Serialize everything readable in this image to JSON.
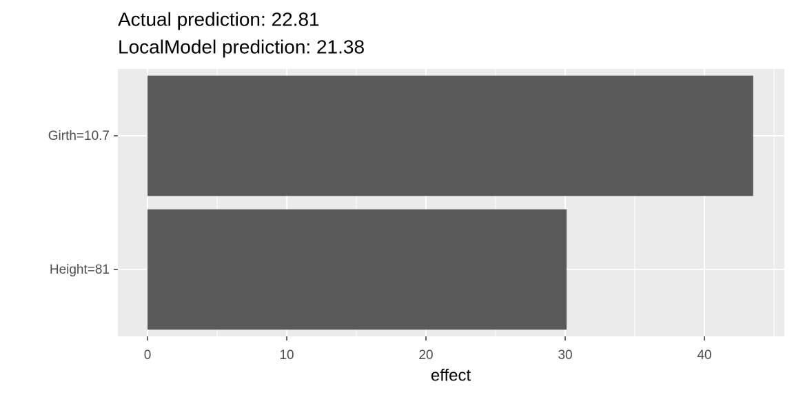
{
  "chart_data": {
    "type": "hbar",
    "title": "Actual prediction: 22.81",
    "subtitle": "LocalModel prediction: 21.38",
    "categories": [
      "Girth=10.7",
      "Height=81"
    ],
    "values": [
      43.5,
      30.1
    ],
    "color": "#595959",
    "xlabel": "effect",
    "xlim": [
      -2.13,
      45.74
    ],
    "xticks": [
      0,
      10,
      20,
      30,
      40
    ],
    "grid": true,
    "minor_grid": true
  }
}
